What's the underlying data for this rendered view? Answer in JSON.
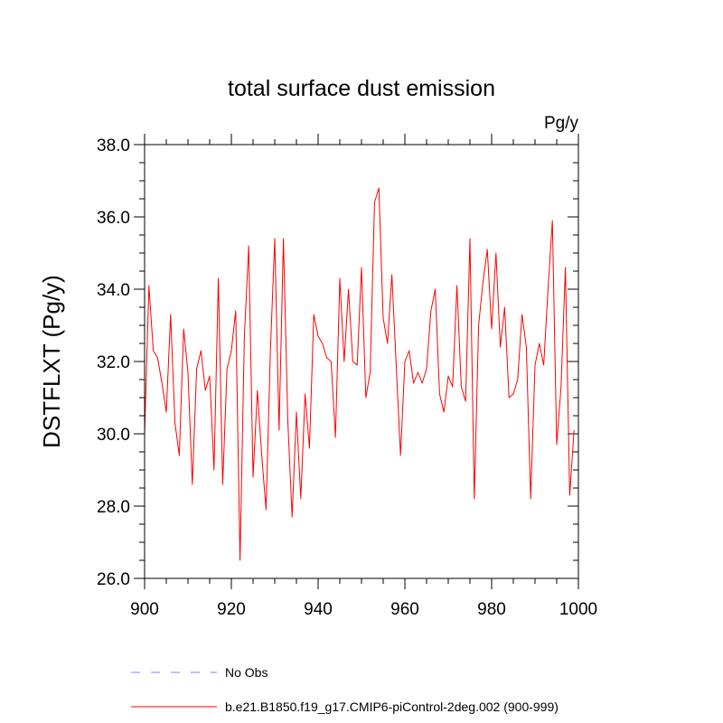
{
  "chart_data": {
    "type": "line",
    "title": "total surface dust emission",
    "units": "Pg/y",
    "ylabel": "DSTFLXT  (Pg/y)",
    "xlabel": "",
    "xlim": [
      900,
      1000
    ],
    "ylim": [
      26.0,
      38.0
    ],
    "x_ticks": [
      900,
      920,
      940,
      960,
      980,
      1000
    ],
    "x_tick_labels": [
      "900",
      "920",
      "940",
      "960",
      "980",
      "1000"
    ],
    "y_ticks": [
      26,
      28,
      30,
      32,
      34,
      36,
      38
    ],
    "y_tick_labels": [
      "26.0",
      "28.0",
      "30.0",
      "32.0",
      "34.0",
      "36.0",
      "38.0"
    ],
    "grid": false,
    "legend_position": "bottom-left",
    "legend": [
      {
        "label": "No Obs",
        "color": "#8080ff",
        "style": "dashed"
      },
      {
        "label": "b.e21.B1850.f19_g17.CMIP6-piControl-2deg.002 (900-999)",
        "color": "#ff0000",
        "style": "solid"
      }
    ],
    "series": [
      {
        "name": "b.e21.B1850.f19_g17.CMIP6-piControl-2deg.002 (900-999)",
        "color": "#ff0000",
        "x_start": 900,
        "x_step": 1,
        "values": [
          30.0,
          34.1,
          32.3,
          32.1,
          31.4,
          30.6,
          33.3,
          30.3,
          29.4,
          32.9,
          31.7,
          28.6,
          31.8,
          32.3,
          31.2,
          31.6,
          29.0,
          34.3,
          28.6,
          31.8,
          32.3,
          33.4,
          26.5,
          32.7,
          35.2,
          28.8,
          31.2,
          29.4,
          27.9,
          32.3,
          35.4,
          30.1,
          35.4,
          30.4,
          27.7,
          30.6,
          28.2,
          31.1,
          29.6,
          33.3,
          32.7,
          32.5,
          32.1,
          32.0,
          29.9,
          34.3,
          32.0,
          34.0,
          32.0,
          31.9,
          34.6,
          31.0,
          31.7,
          36.4,
          36.8,
          33.2,
          32.5,
          34.4,
          31.9,
          29.4,
          32.0,
          32.3,
          31.4,
          31.7,
          31.4,
          31.8,
          33.4,
          34.0,
          31.1,
          30.6,
          31.6,
          31.3,
          34.1,
          31.3,
          30.9,
          35.4,
          28.2,
          33.0,
          34.2,
          35.1,
          32.9,
          35.0,
          32.4,
          33.5,
          31.0,
          31.1,
          31.5,
          33.3,
          32.4,
          28.2,
          31.9,
          32.5,
          31.9,
          34.0,
          35.9,
          29.7,
          31.3,
          34.6,
          28.3,
          30.1
        ]
      }
    ]
  }
}
